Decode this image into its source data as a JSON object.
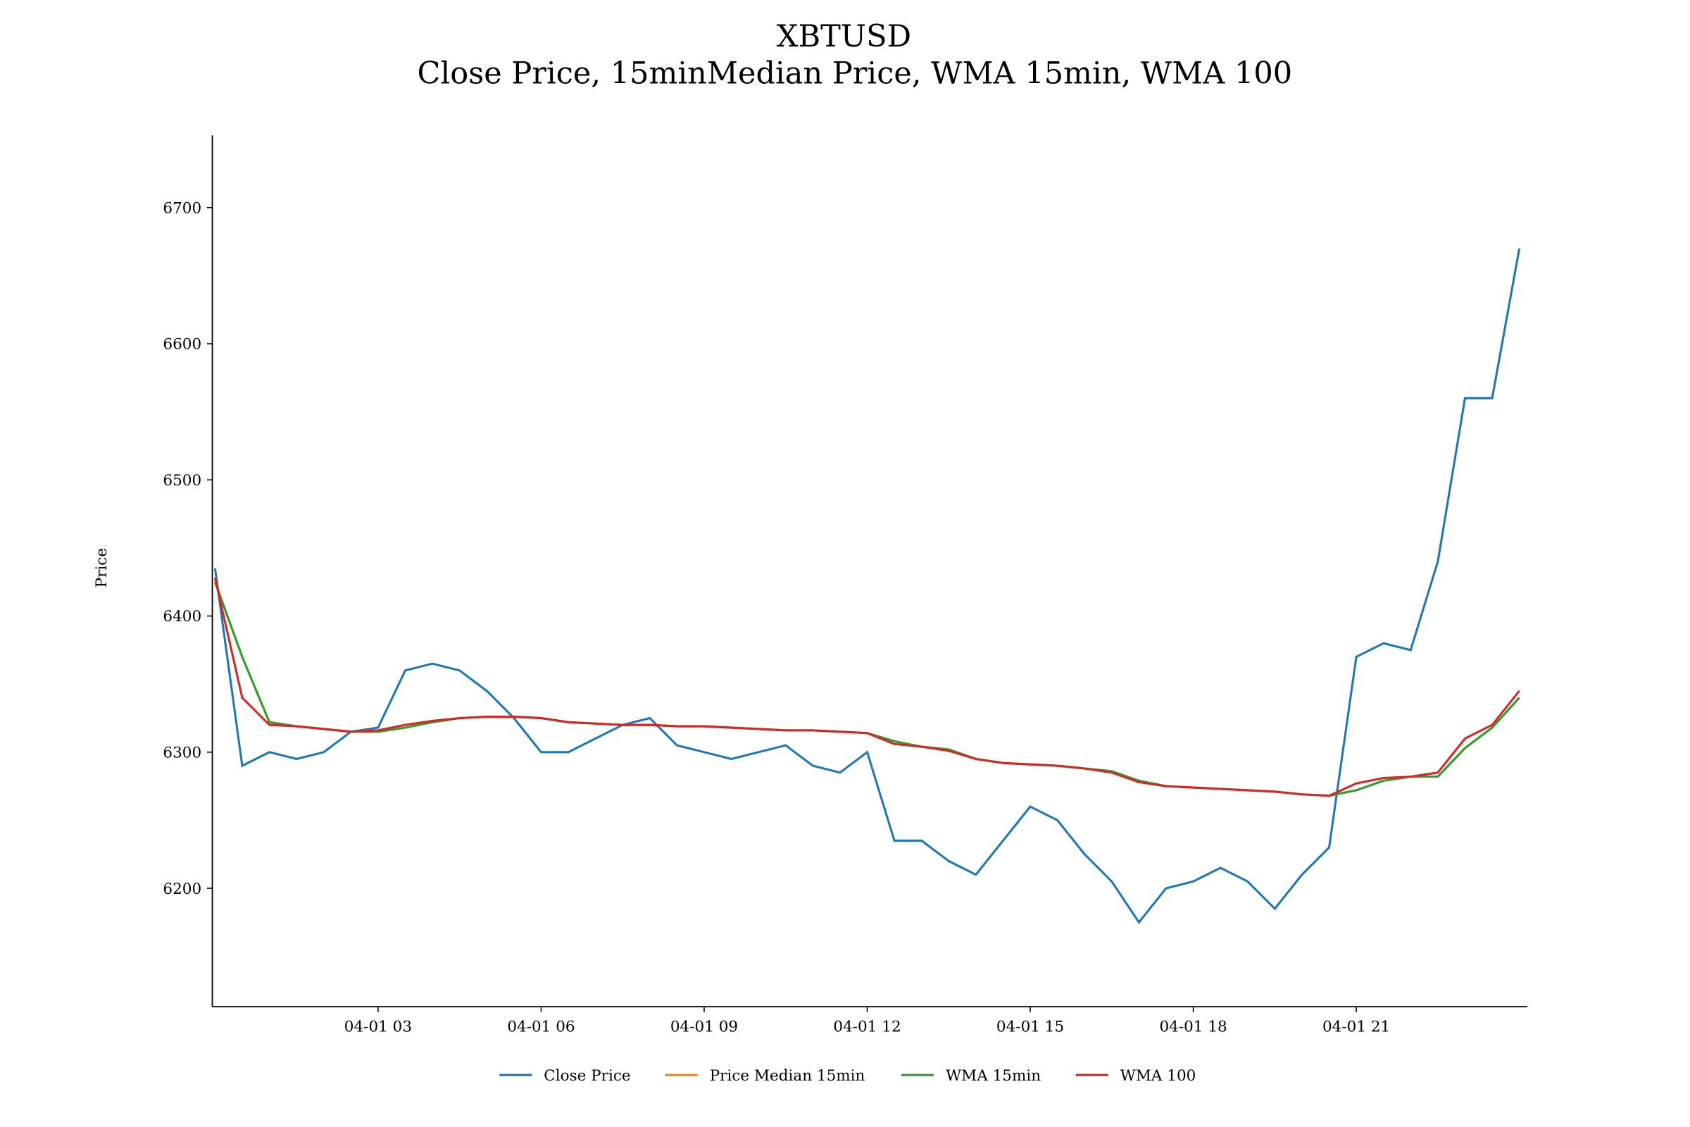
{
  "chart_data": {
    "type": "line",
    "title": "XBTUSD",
    "subtitle": "Close Price, 15minMedian Price, WMA 15min, WMA 100",
    "y_label": "Price",
    "x": [
      0,
      0.5,
      1,
      1.5,
      2,
      2.5,
      3,
      3.5,
      4,
      4.5,
      5,
      5.5,
      6,
      6.5,
      7,
      7.5,
      8,
      8.5,
      9,
      9.5,
      10,
      10.5,
      11,
      11.5,
      12,
      12.5,
      13,
      13.5,
      14,
      14.5,
      15,
      15.5,
      16,
      16.5,
      17,
      17.5,
      18,
      18.5,
      19,
      19.5,
      20,
      20.5,
      21,
      21.5,
      22,
      22.5,
      23,
      23.5,
      24
    ],
    "xlim": [
      -0.05,
      24.15
    ],
    "xticks": [
      {
        "value": 3,
        "label": "04-01 03"
      },
      {
        "value": 6,
        "label": "04-01 06"
      },
      {
        "value": 9,
        "label": "04-01 09"
      },
      {
        "value": 12,
        "label": "04-01 12"
      },
      {
        "value": 15,
        "label": "04-01 15"
      },
      {
        "value": 18,
        "label": "04-01 18"
      },
      {
        "value": 21,
        "label": "04-01 21"
      }
    ],
    "ylim": [
      6113,
      6753
    ],
    "yticks": [
      6200,
      6300,
      6400,
      6500,
      6600,
      6700
    ],
    "legend": "bottom",
    "series": [
      {
        "name": "Close Price",
        "color": "#1f77b4",
        "values": [
          6435,
          6290,
          6300,
          6295,
          6300,
          6315,
          6318,
          6360,
          6365,
          6360,
          6345,
          6325,
          6300,
          6300,
          6310,
          6320,
          6325,
          6305,
          6300,
          6295,
          6300,
          6305,
          6290,
          6285,
          6300,
          6235,
          6235,
          6220,
          6210,
          6235,
          6260,
          6250,
          6225,
          6205,
          6175,
          6200,
          6205,
          6215,
          6205,
          6185,
          6210,
          6230,
          6370,
          6380,
          6375,
          6440,
          6560,
          6560,
          6670
        ]
      },
      {
        "name": "Price Median 15min",
        "color": "#ff7f0e",
        "values": [
          6425,
          6370,
          6322,
          6319,
          6317,
          6315,
          6315,
          6318,
          6322,
          6325,
          6326,
          6326,
          6325,
          6322,
          6321,
          6320,
          6320,
          6319,
          6319,
          6318,
          6317,
          6316,
          6316,
          6315,
          6314,
          6308,
          6304,
          6302,
          6295,
          6292,
          6291,
          6290,
          6288,
          6286,
          6279,
          6275,
          6274,
          6273,
          6272,
          6271,
          6269,
          6268,
          6272,
          6279,
          6282,
          6282,
          6303,
          6318,
          6340
        ]
      },
      {
        "name": "WMA 15min",
        "color": "#2ca02c",
        "values": [
          6425,
          6370,
          6322,
          6319,
          6317,
          6315,
          6315,
          6318,
          6322,
          6325,
          6326,
          6326,
          6325,
          6322,
          6321,
          6320,
          6320,
          6319,
          6319,
          6318,
          6317,
          6316,
          6316,
          6315,
          6314,
          6308,
          6304,
          6302,
          6295,
          6292,
          6291,
          6290,
          6288,
          6286,
          6279,
          6275,
          6274,
          6273,
          6272,
          6271,
          6269,
          6268,
          6272,
          6279,
          6282,
          6282,
          6303,
          6318,
          6340
        ]
      },
      {
        "name": "WMA 100",
        "color": "#d62728",
        "values": [
          6428,
          6340,
          6320,
          6319,
          6317,
          6315,
          6316,
          6320,
          6323,
          6325,
          6326,
          6326,
          6325,
          6322,
          6321,
          6320,
          6320,
          6319,
          6319,
          6318,
          6317,
          6316,
          6316,
          6315,
          6314,
          6306,
          6304,
          6301,
          6295,
          6292,
          6291,
          6290,
          6288,
          6285,
          6278,
          6275,
          6274,
          6273,
          6272,
          6271,
          6269,
          6268,
          6277,
          6281,
          6282,
          6285,
          6310,
          6320,
          6345
        ]
      }
    ]
  }
}
